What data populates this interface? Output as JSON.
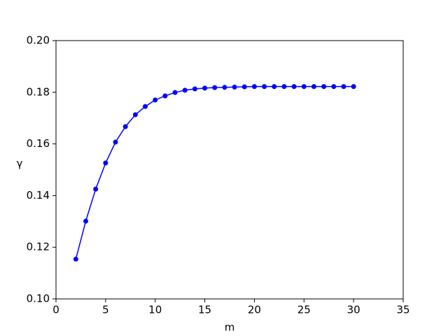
{
  "chart_data": {
    "type": "line",
    "xlabel": "m",
    "ylabel": "γ",
    "x": [
      2,
      3,
      4,
      5,
      6,
      7,
      8,
      9,
      10,
      11,
      12,
      13,
      14,
      15,
      16,
      17,
      18,
      19,
      20,
      21,
      22,
      23,
      24,
      25,
      26,
      27,
      28,
      29,
      30
    ],
    "series": [
      {
        "name": "γ",
        "color": "#0000ff",
        "values": [
          0.1154,
          0.1301,
          0.1425,
          0.1526,
          0.1607,
          0.1667,
          0.1713,
          0.1745,
          0.177,
          0.1786,
          0.1799,
          0.1808,
          0.1813,
          0.1816,
          0.1818,
          0.1819,
          0.182,
          0.1821,
          0.1822,
          0.1822,
          0.1822,
          0.1822,
          0.1822,
          0.1822,
          0.1822,
          0.1822,
          0.1822,
          0.1822,
          0.1822
        ]
      }
    ],
    "xlim": [
      0,
      35
    ],
    "xticks": [
      0,
      5,
      10,
      15,
      20,
      25,
      30,
      35
    ],
    "ylim": [
      0.1,
      0.2
    ],
    "yticks": [
      {
        "value": 0.1,
        "label": "0.10"
      },
      {
        "value": 0.12,
        "label": "0.12"
      },
      {
        "value": 0.14,
        "label": "0.14"
      },
      {
        "value": 0.16,
        "label": "0.16"
      },
      {
        "value": 0.18,
        "label": "0.18"
      },
      {
        "value": 0.2,
        "label": "0.20"
      }
    ],
    "grid": false
  }
}
